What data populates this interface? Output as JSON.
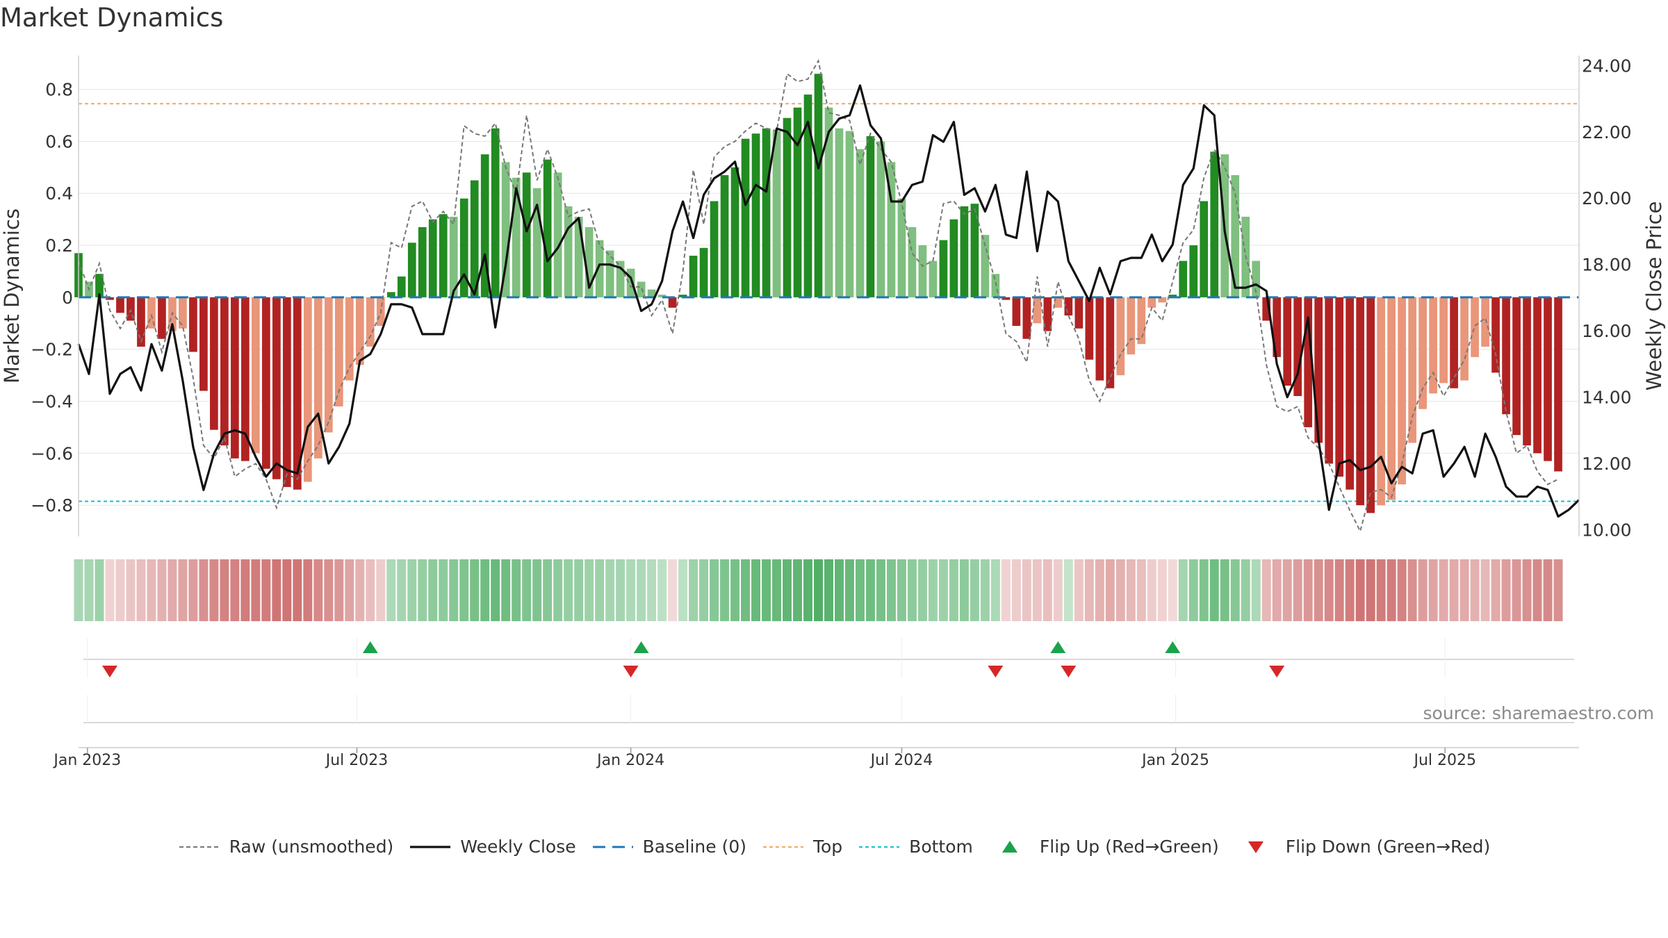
{
  "title": "Market Dynamics",
  "source_label": "source: sharemaestro.com",
  "colors": {
    "raw": "#777777",
    "close": "#111111",
    "baseline": "#1f77b4",
    "top": "#f0a862",
    "bottom": "#17becf",
    "pos_strong": "#228b22",
    "pos_weak": "#7fbf7f",
    "neg_strong": "#b22222",
    "neg_weak": "#e9967a",
    "flip_up": "#1aa34a",
    "flip_down": "#d62728"
  },
  "legend": [
    {
      "key": "raw",
      "label": "Raw (unsmoothed)"
    },
    {
      "key": "close",
      "label": "Weekly Close"
    },
    {
      "key": "baseline",
      "label": "Baseline (0)"
    },
    {
      "key": "top",
      "label": "Top"
    },
    {
      "key": "bottom",
      "label": "Bottom"
    },
    {
      "key": "flip_up",
      "label": "Flip Up (Red→Green)"
    },
    {
      "key": "flip_down",
      "label": "Flip Down (Green→Red)"
    }
  ],
  "chart_data": {
    "type": "bar",
    "title": "Market Dynamics",
    "ylabel": "Market Dynamics",
    "y2label": "Weekly Close Price",
    "ylim": [
      -0.92,
      0.93
    ],
    "y2lim": [
      9.8,
      24.3
    ],
    "yticks": [
      0.8,
      0.6,
      0.4,
      0.2,
      0,
      -0.2,
      -0.4,
      -0.6,
      -0.8
    ],
    "ytick_labels": [
      "0.8",
      "0.6",
      "0.4",
      "0.2",
      "0",
      "−0.2",
      "−0.4",
      "−0.6",
      "−0.8"
    ],
    "y2ticks": [
      24,
      22,
      20,
      18,
      16,
      14,
      12,
      10
    ],
    "y2tick_labels": [
      "24.00",
      "22.00",
      "20.00",
      "18.00",
      "16.00",
      "14.00",
      "12.00",
      "10.00"
    ],
    "x_start": "2022-12-26",
    "x_end": "2025-09-29",
    "xticks": [
      {
        "date": "2023-01-01",
        "label": "Jan 2023"
      },
      {
        "date": "2023-07-01",
        "label": "Jul 2023"
      },
      {
        "date": "2024-01-01",
        "label": "Jan 2024"
      },
      {
        "date": "2024-07-01",
        "label": "Jul 2024"
      },
      {
        "date": "2025-01-01",
        "label": "Jan 2025"
      },
      {
        "date": "2025-07-01",
        "label": "Jul 2025"
      }
    ],
    "top_level": 0.745,
    "bottom_level": -0.785,
    "baseline": 0,
    "first_week": "2022-12-26",
    "momentum": [
      0.17,
      0.06,
      0.09,
      -0.01,
      -0.06,
      -0.09,
      -0.19,
      -0.12,
      -0.16,
      -0.13,
      -0.12,
      -0.21,
      -0.36,
      -0.51,
      -0.57,
      -0.62,
      -0.63,
      -0.6,
      -0.66,
      -0.7,
      -0.73,
      -0.74,
      -0.71,
      -0.62,
      -0.52,
      -0.42,
      -0.32,
      -0.26,
      -0.19,
      -0.11,
      0.02,
      0.08,
      0.21,
      0.27,
      0.3,
      0.32,
      0.31,
      0.38,
      0.45,
      0.55,
      0.65,
      0.52,
      0.46,
      0.48,
      0.42,
      0.53,
      0.48,
      0.35,
      0.31,
      0.27,
      0.22,
      0.18,
      0.14,
      0.11,
      0.06,
      0.03,
      0.01,
      -0.04,
      0.01,
      0.16,
      0.19,
      0.37,
      0.47,
      0.5,
      0.61,
      0.63,
      0.65,
      0.64,
      0.69,
      0.73,
      0.78,
      0.86,
      0.73,
      0.65,
      0.64,
      0.57,
      0.62,
      0.6,
      0.52,
      0.38,
      0.27,
      0.2,
      0.14,
      0.22,
      0.3,
      0.35,
      0.36,
      0.24,
      0.09,
      -0.01,
      -0.11,
      -0.16,
      -0.1,
      -0.13,
      -0.04,
      -0.07,
      -0.12,
      -0.24,
      -0.32,
      -0.35,
      -0.3,
      -0.22,
      -0.18,
      -0.04,
      -0.02,
      0.01,
      0.14,
      0.2,
      0.37,
      0.56,
      0.55,
      0.47,
      0.31,
      0.14,
      -0.09,
      -0.23,
      -0.34,
      -0.38,
      -0.5,
      -0.56,
      -0.64,
      -0.69,
      -0.74,
      -0.8,
      -0.83,
      -0.8,
      -0.78,
      -0.72,
      -0.56,
      -0.43,
      -0.37,
      -0.33,
      -0.35,
      -0.32,
      -0.23,
      -0.19,
      -0.29,
      -0.45,
      -0.53,
      -0.57,
      -0.6,
      -0.63,
      -0.67
    ],
    "raw": [
      0.14,
      0.03,
      0.13,
      -0.05,
      -0.12,
      -0.05,
      -0.17,
      -0.07,
      -0.21,
      -0.06,
      -0.11,
      -0.31,
      -0.57,
      -0.62,
      -0.54,
      -0.69,
      -0.66,
      -0.64,
      -0.7,
      -0.81,
      -0.68,
      -0.7,
      -0.63,
      -0.57,
      -0.48,
      -0.36,
      -0.27,
      -0.21,
      -0.15,
      -0.06,
      0.21,
      0.19,
      0.35,
      0.37,
      0.29,
      0.33,
      0.28,
      0.66,
      0.63,
      0.62,
      0.67,
      0.5,
      0.4,
      0.7,
      0.45,
      0.57,
      0.46,
      0.31,
      0.33,
      0.34,
      0.2,
      0.16,
      0.12,
      0.04,
      0.04,
      -0.07,
      -0.01,
      -0.14,
      0.1,
      0.49,
      0.28,
      0.54,
      0.58,
      0.6,
      0.64,
      0.67,
      0.65,
      0.64,
      0.86,
      0.83,
      0.84,
      0.91,
      0.71,
      0.7,
      0.68,
      0.51,
      0.63,
      0.57,
      0.52,
      0.36,
      0.17,
      0.12,
      0.14,
      0.36,
      0.37,
      0.32,
      0.34,
      0.2,
      0.06,
      -0.14,
      -0.17,
      -0.25,
      0.08,
      -0.19,
      0.06,
      -0.07,
      -0.16,
      -0.32,
      -0.4,
      -0.31,
      -0.22,
      -0.16,
      -0.16,
      -0.04,
      -0.09,
      0.06,
      0.21,
      0.26,
      0.46,
      0.57,
      0.5,
      0.4,
      0.16,
      0.02,
      -0.26,
      -0.42,
      -0.44,
      -0.42,
      -0.54,
      -0.58,
      -0.64,
      -0.73,
      -0.82,
      -0.9,
      -0.75,
      -0.74,
      -0.77,
      -0.64,
      -0.46,
      -0.35,
      -0.29,
      -0.38,
      -0.31,
      -0.24,
      -0.11,
      -0.08,
      -0.22,
      -0.44,
      -0.6,
      -0.57,
      -0.67,
      -0.72,
      -0.7
    ],
    "close": [
      15.6,
      14.7,
      17.1,
      14.1,
      14.7,
      14.9,
      14.2,
      15.6,
      14.8,
      16.2,
      14.5,
      12.5,
      11.2,
      12.3,
      12.9,
      13.0,
      12.9,
      12.2,
      11.6,
      12.0,
      11.8,
      11.7,
      13.1,
      13.5,
      12.0,
      12.5,
      13.2,
      15.1,
      15.3,
      15.9,
      16.8,
      16.8,
      16.7,
      15.9,
      15.9,
      15.9,
      17.2,
      17.7,
      17.1,
      18.3,
      16.1,
      18.0,
      20.3,
      19.0,
      19.8,
      18.1,
      18.5,
      19.1,
      19.4,
      17.3,
      18.0,
      18.0,
      17.9,
      17.6,
      16.6,
      16.8,
      17.5,
      19.0,
      19.9,
      18.8,
      20.1,
      20.6,
      20.8,
      21.1,
      19.8,
      20.4,
      20.2,
      22.1,
      22.0,
      21.6,
      22.3,
      20.9,
      22.0,
      22.4,
      22.5,
      23.4,
      22.2,
      21.8,
      19.9,
      19.9,
      20.4,
      20.5,
      21.9,
      21.7,
      22.3,
      20.1,
      20.3,
      19.6,
      20.4,
      18.9,
      18.8,
      20.8,
      18.4,
      20.2,
      19.9,
      18.1,
      17.5,
      16.9,
      17.9,
      17.1,
      18.1,
      18.2,
      18.2,
      18.9,
      18.1,
      18.6,
      20.4,
      20.9,
      22.8,
      22.5,
      19.0,
      17.3,
      17.3,
      17.4,
      17.2,
      15.0,
      14.0,
      14.7,
      16.4,
      12.7,
      10.6,
      12.0,
      12.1,
      11.8,
      11.9,
      12.2,
      11.4,
      11.9,
      11.7,
      12.9,
      13.0,
      11.6,
      12.0,
      12.5,
      11.6,
      12.9,
      12.2,
      11.3,
      11.0,
      11.0,
      11.3,
      11.2,
      10.4,
      10.6,
      10.9
    ],
    "sentiment_strip": [
      0.33,
      0.33,
      0.4,
      -0.15,
      -0.2,
      -0.25,
      -0.3,
      -0.35,
      -0.4,
      -0.45,
      -0.5,
      -0.55,
      -0.65,
      -0.7,
      -0.75,
      -0.75,
      -0.8,
      -0.8,
      -0.8,
      -0.85,
      -0.85,
      -0.85,
      -0.8,
      -0.7,
      -0.65,
      -0.6,
      -0.5,
      -0.4,
      -0.3,
      -0.2,
      0.3,
      0.35,
      0.4,
      0.45,
      0.5,
      0.5,
      0.55,
      0.6,
      0.65,
      0.7,
      0.75,
      0.7,
      0.65,
      0.6,
      0.6,
      0.55,
      0.5,
      0.45,
      0.45,
      0.4,
      0.4,
      0.35,
      0.35,
      0.3,
      0.3,
      0.25,
      0.2,
      -0.1,
      0.2,
      0.4,
      0.45,
      0.55,
      0.6,
      0.65,
      0.7,
      0.75,
      0.75,
      0.75,
      0.8,
      0.8,
      0.85,
      0.9,
      0.85,
      0.8,
      0.75,
      0.7,
      0.7,
      0.65,
      0.6,
      0.55,
      0.5,
      0.45,
      0.4,
      0.4,
      0.45,
      0.5,
      0.45,
      0.4,
      0.3,
      -0.15,
      -0.2,
      -0.25,
      -0.25,
      -0.3,
      -0.2,
      0.15,
      -0.25,
      -0.35,
      -0.4,
      -0.45,
      -0.4,
      -0.35,
      -0.3,
      -0.2,
      -0.15,
      -0.1,
      0.35,
      0.5,
      0.6,
      0.7,
      0.65,
      0.55,
      0.45,
      0.3,
      -0.35,
      -0.45,
      -0.5,
      -0.55,
      -0.6,
      -0.65,
      -0.7,
      -0.75,
      -0.8,
      -0.85,
      -0.85,
      -0.8,
      -0.8,
      -0.75,
      -0.65,
      -0.55,
      -0.5,
      -0.45,
      -0.45,
      -0.45,
      -0.4,
      -0.35,
      -0.45,
      -0.55,
      -0.6,
      -0.65,
      -0.7,
      -0.7,
      -0.65
    ],
    "flip_up_dates": [
      "2023-07-10",
      "2024-01-08",
      "2024-10-14",
      "2024-12-30"
    ],
    "flip_down_dates": [
      "2023-01-16",
      "2024-01-01",
      "2024-09-02",
      "2024-10-21",
      "2025-03-10"
    ],
    "legend_position": "bottom-center"
  }
}
